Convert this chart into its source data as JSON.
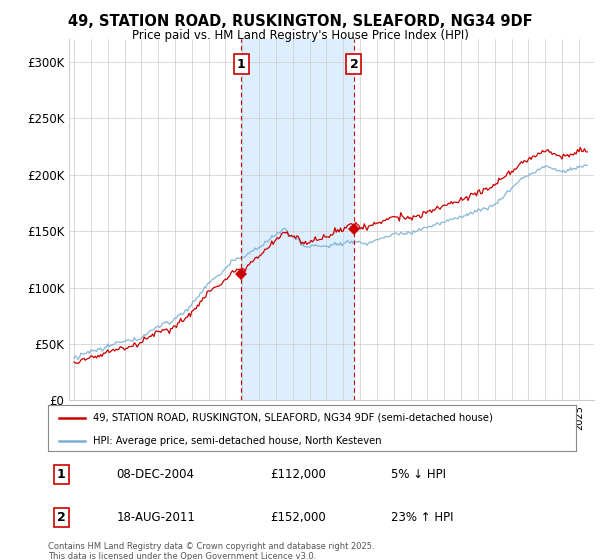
{
  "title": "49, STATION ROAD, RUSKINGTON, SLEAFORD, NG34 9DF",
  "subtitle": "Price paid vs. HM Land Registry's House Price Index (HPI)",
  "property_label": "49, STATION ROAD, RUSKINGTON, SLEAFORD, NG34 9DF (semi-detached house)",
  "hpi_label": "HPI: Average price, semi-detached house, North Kesteven",
  "footer": "Contains HM Land Registry data © Crown copyright and database right 2025.\nThis data is licensed under the Open Government Licence v3.0.",
  "sale1_date": "08-DEC-2004",
  "sale1_price": 112000,
  "sale1_pct": "5% ↓ HPI",
  "sale1_label": "1",
  "sale1_year": 2004.93,
  "sale2_date": "18-AUG-2011",
  "sale2_price": 152000,
  "sale2_pct": "23% ↑ HPI",
  "sale2_label": "2",
  "sale2_year": 2011.63,
  "ylim_max": 320000,
  "property_color": "#cc0000",
  "hpi_color": "#7bafd4",
  "vline_color": "#cc0000",
  "shade_color": "#ddeeff",
  "grid_color": "#cccccc",
  "box_color": "#cc0000",
  "bg_color": "#f8f8f8"
}
